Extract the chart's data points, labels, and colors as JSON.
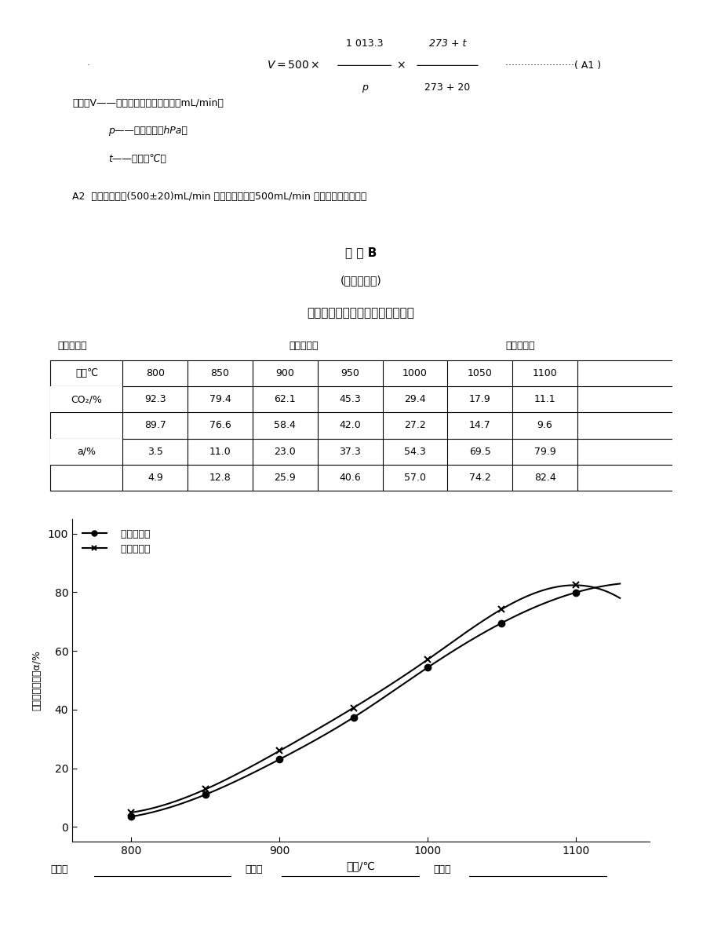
{
  "formula_line": "V = 500 ×                                     (A1)",
  "appendix_title": "附 录 B",
  "appendix_subtitle": "(提示的附录)",
  "report_title": "二氧化碳反应性测定报告（示例）",
  "sample_label": "试样编号：",
  "source_label": "来样编号：",
  "date_label": "测定日期：",
  "temp_row_label": "温度℃",
  "co2_row_label": "CO₂/%",
  "a_row_label": "a/%",
  "temperatures": [
    800,
    850,
    900,
    950,
    1000,
    1050,
    1100
  ],
  "co2_row1": [
    92.3,
    79.4,
    62.1,
    45.3,
    29.4,
    17.9,
    11.1
  ],
  "co2_row2": [
    89.7,
    76.6,
    58.4,
    42.0,
    27.2,
    14.7,
    9.6
  ],
  "a_row1": [
    3.5,
    11.0,
    23.0,
    37.3,
    54.3,
    69.5,
    79.9
  ],
  "a_row2": [
    4.9,
    12.8,
    25.9,
    40.6,
    57.0,
    74.2,
    82.4
  ],
  "xlabel": "温度/℃",
  "ylabel": "二氧化碳还原率α/%",
  "legend1": "第一次测定",
  "legend2": "第二次测定",
  "measure_label": "测定：",
  "review_label": "审核：",
  "approve_label": "批准：",
  "bg_color": "#ffffff",
  "text_color": "#000000",
  "line_color": "#1a1a1a",
  "formula_text": "V = 500 ×",
  "fraction1_num": "1 013.3",
  "fraction1_den": "p",
  "fraction2_num": "273 + t",
  "fraction2_den": "273 + 20",
  "A2_note": "A2  如果计算値在(500±20)mL/min 范围内，仍可按500mL/min 的流量通二氧化碳。",
  "formula_vars": [
    "式中：V——需通入的二氧化碳流量，mL/min；",
    "p——大气压力，hPa；",
    "t——室温，℃。"
  ]
}
